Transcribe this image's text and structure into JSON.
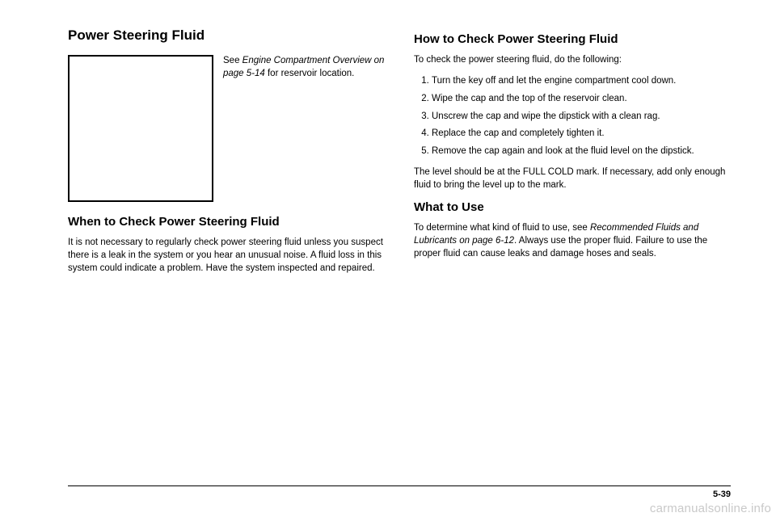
{
  "left": {
    "h1": "Power Steering Fluid",
    "intro_pre": "See ",
    "intro_ref": "Engine Compartment Overview on page 5-14",
    "intro_post": " for reservoir location.",
    "h2": "When to Check Power Steering Fluid",
    "p1": "It is not necessary to regularly check power steering fluid unless you suspect there is a leak in the system or you hear an unusual noise. A fluid loss in this system could indicate a problem. Have the system inspected and repaired."
  },
  "right": {
    "h2a": "How to Check Power Steering Fluid",
    "lead": "To check the power steering fluid, do the following:",
    "steps": [
      "Turn the key off and let the engine compartment cool down.",
      "Wipe the cap and the top of the reservoir clean.",
      "Unscrew the cap and wipe the dipstick with a clean rag.",
      "Replace the cap and completely tighten it.",
      "Remove the cap again and look at the fluid level on the dipstick."
    ],
    "after": "The level should be at the FULL COLD mark. If necessary, add only enough fluid to bring the level up to the mark.",
    "h2b": "What to Use",
    "use_pre": "To determine what kind of fluid to use, see ",
    "use_ref": "Recommended Fluids and Lubricants on page 6-12",
    "use_post": ". Always use the proper fluid. Failure to use the proper fluid can cause leaks and damage hoses and seals."
  },
  "pagenum": "5-39",
  "watermark": "carmanualsonline.info"
}
